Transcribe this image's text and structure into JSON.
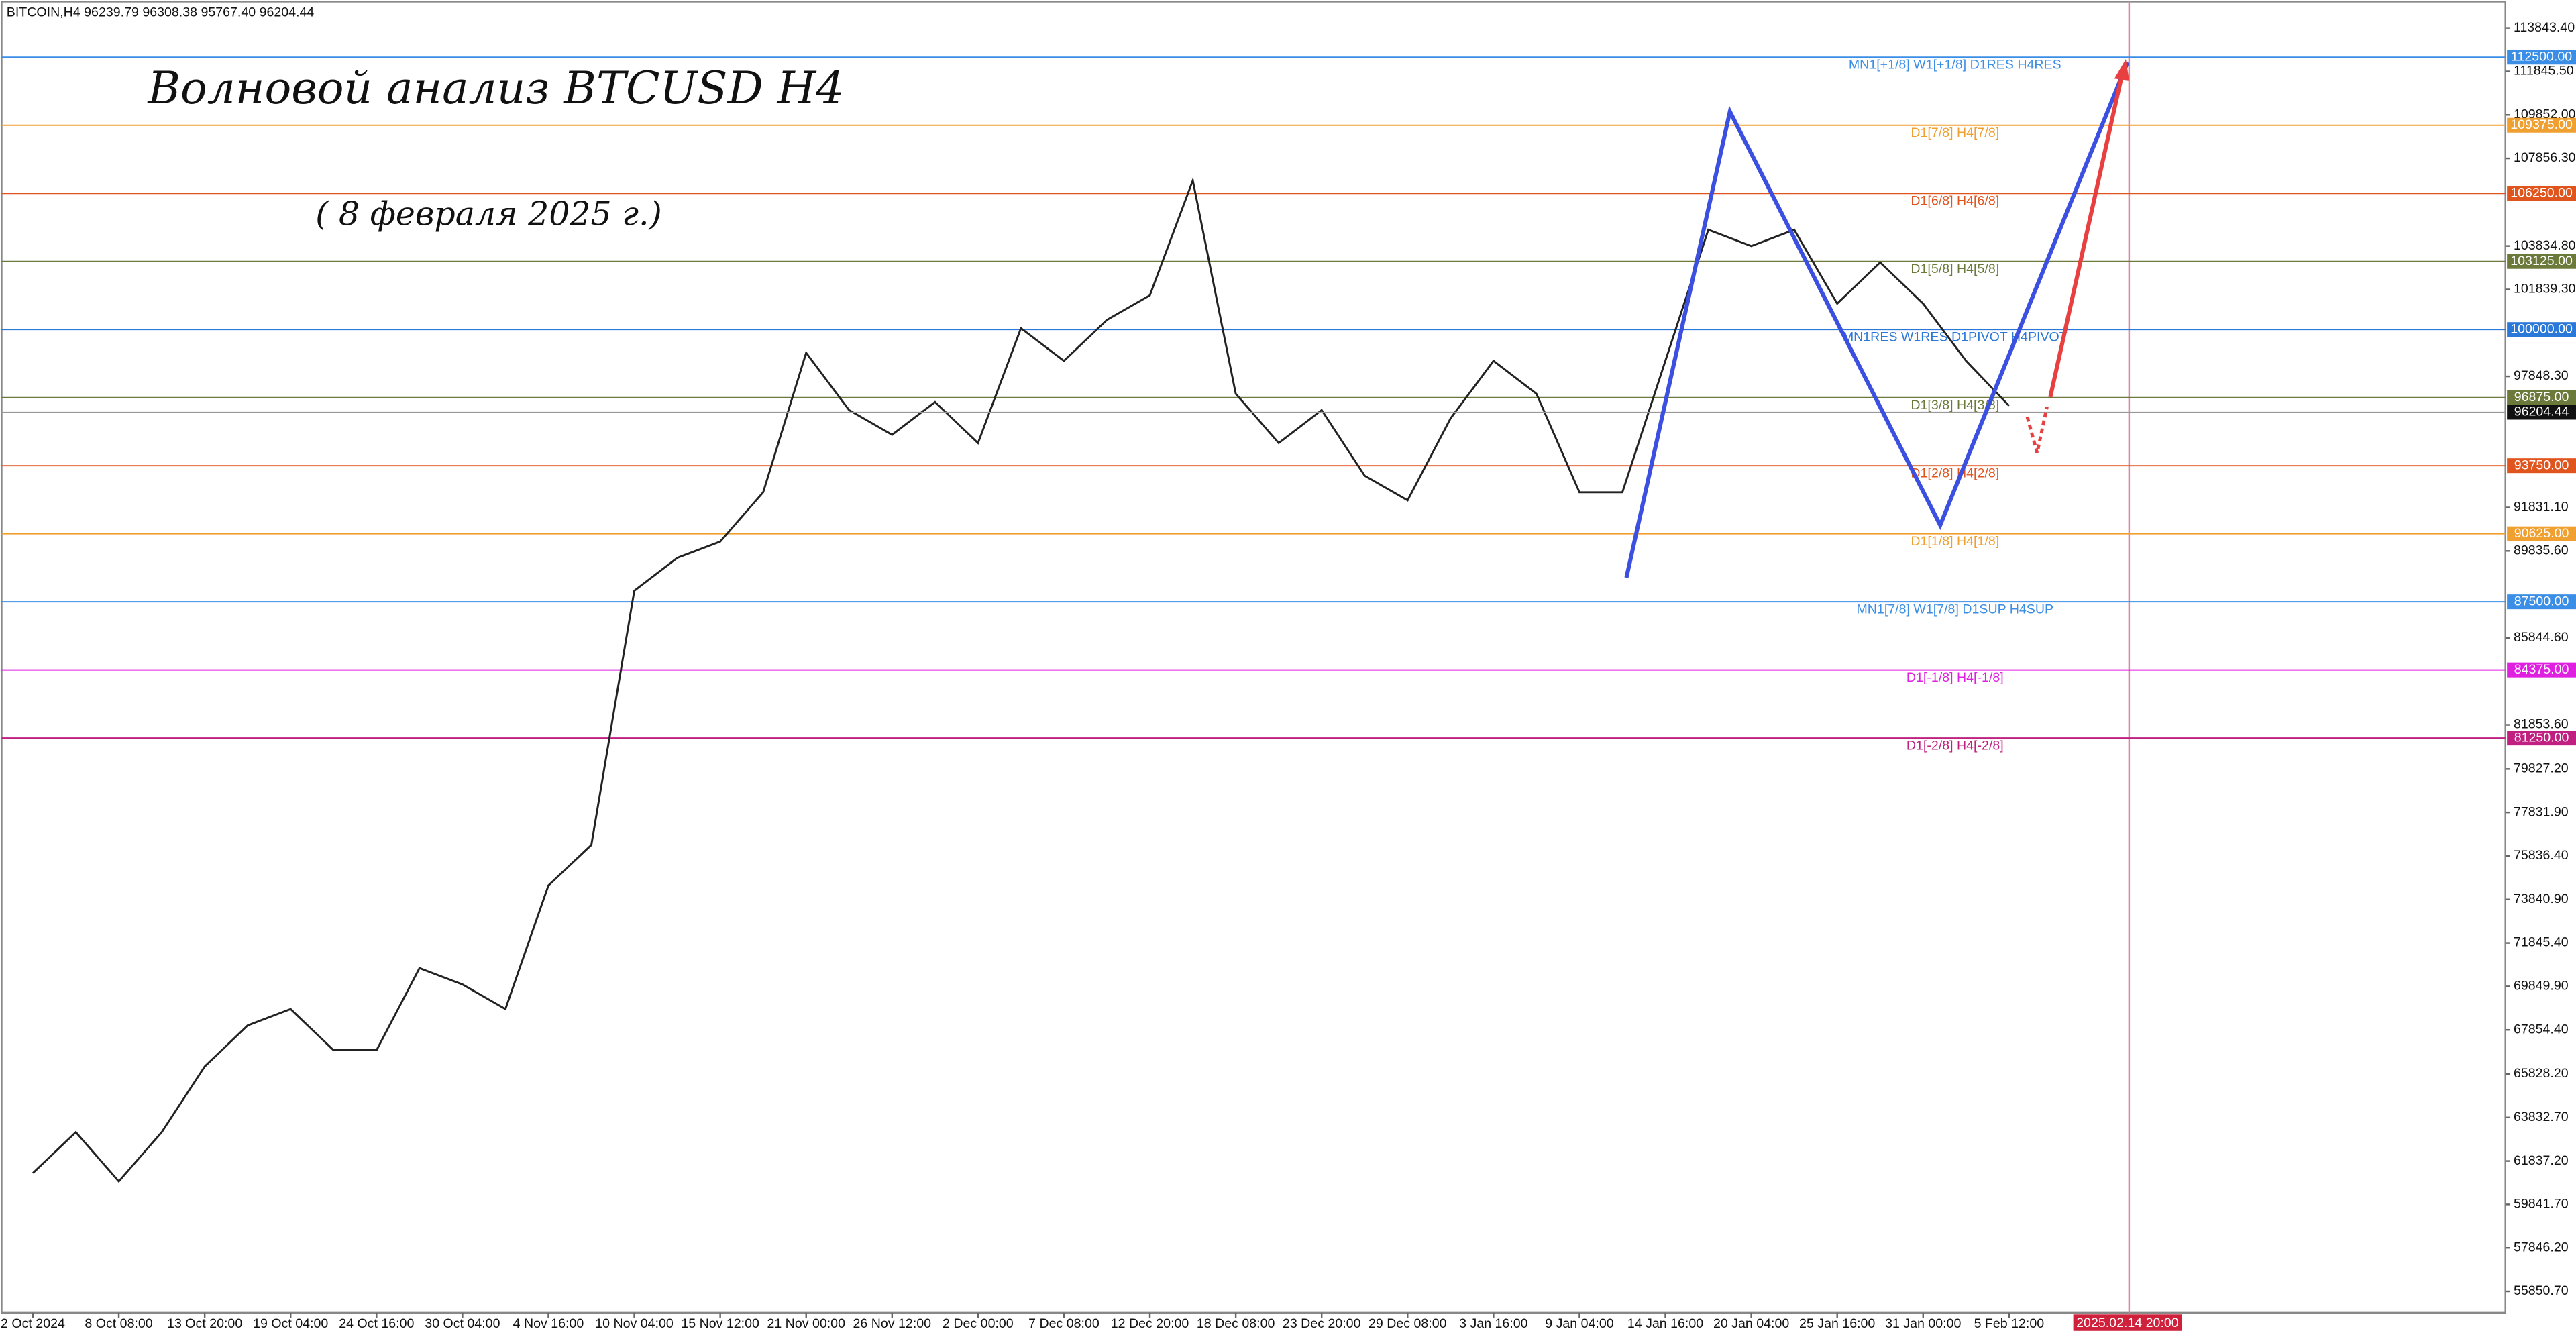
{
  "chart_data": {
    "type": "line",
    "header": "BITCOIN,H4  96239.79 96308.38 95767.40 96204.44",
    "title": "Волновой анализ BTCUSD H4",
    "subtitle": "( 8 февраля 2025 г.)",
    "categories": [
      "2 Oct 2024",
      null,
      "8 Oct 08:00",
      null,
      "13 Oct 20:00",
      null,
      "19 Oct 04:00",
      null,
      "24 Oct 16:00",
      null,
      "30 Oct 04:00",
      null,
      "4 Nov 16:00",
      null,
      "10 Nov 04:00",
      null,
      "15 Nov 12:00",
      null,
      "21 Nov 00:00",
      null,
      "26 Nov 12:00",
      null,
      "2 Dec 00:00",
      null,
      "7 Dec 08:00",
      null,
      "12 Dec 20:00",
      null,
      "18 Dec 08:00",
      null,
      "23 Dec 20:00",
      null,
      "29 Dec 08:00",
      null,
      "3 Jan 16:00",
      null,
      "9 Jan 04:00",
      null,
      "14 Jan 16:00",
      null,
      "20 Jan 04:00",
      null,
      "25 Jan 16:00",
      null,
      "31 Jan 00:00",
      null,
      "5 Feb 12:00"
    ],
    "series": [
      {
        "name": "BITCOIN,H4",
        "color": "#222222",
        "values": [
          61280,
          63160,
          60900,
          63160,
          66170,
          68060,
          68810,
          66920,
          66920,
          70690,
          69940,
          68810,
          74480,
          76340,
          88010,
          89520,
          90270,
          92530,
          98930,
          96300,
          95170,
          96670,
          94790,
          100060,
          98560,
          100440,
          101570,
          106840,
          97050,
          94790,
          96300,
          93290,
          92160,
          95920,
          98560,
          97050,
          92530,
          92530,
          98560,
          104580,
          103830,
          104580,
          101190,
          103080,
          101190,
          98560,
          96500
        ]
      }
    ],
    "ylim": [
      54870,
      115125
    ],
    "yticks": [
      {
        "value": 113843.4,
        "label": "113843.40"
      },
      {
        "value": 111845.5,
        "label": "111845.50"
      },
      {
        "value": 109852.0,
        "label": "109852.00"
      },
      {
        "value": 107856.3,
        "label": "107856.30"
      },
      {
        "value": 103834.8,
        "label": "103834.80"
      },
      {
        "value": 101839.3,
        "label": "101839.30"
      },
      {
        "value": 97848.3,
        "label": "97848.30"
      },
      {
        "value": 91831.1,
        "label": "91831.10"
      },
      {
        "value": 89835.6,
        "label": "89835.60"
      },
      {
        "value": 85844.6,
        "label": "85844.60"
      },
      {
        "value": 81853.6,
        "label": "81853.60"
      },
      {
        "value": 79827.2,
        "label": "79827.20"
      },
      {
        "value": 77831.9,
        "label": "77831.90"
      },
      {
        "value": 75836.4,
        "label": "75836.40"
      },
      {
        "value": 73840.9,
        "label": "73840.90"
      },
      {
        "value": 71845.4,
        "label": "71845.40"
      },
      {
        "value": 69849.9,
        "label": "69849.90"
      },
      {
        "value": 67854.4,
        "label": "67854.40"
      },
      {
        "value": 65828.2,
        "label": "65828.20"
      },
      {
        "value": 63832.7,
        "label": "63832.70"
      },
      {
        "value": 61837.2,
        "label": "61837.20"
      },
      {
        "value": 59841.7,
        "label": "59841.70"
      },
      {
        "value": 57846.2,
        "label": "57846.20"
      },
      {
        "value": 55850.7,
        "label": "55850.70"
      }
    ],
    "levels": [
      {
        "name": "MN1[+1/8] W1[+1/8] D1RES H4RES",
        "color": "#3a8ee6",
        "value": 112500,
        "value_label": "112500.00"
      },
      {
        "name": "D1[7/8] H4[7/8]",
        "color": "#f0a030",
        "value": 109375,
        "value_label": "109375.00"
      },
      {
        "name": "D1[6/8] H4[6/8]",
        "color": "#e0541e",
        "value": 106250,
        "value_label": "106250.00"
      },
      {
        "name": "D1[5/8] H4[5/8]",
        "color": "#6b7a3a",
        "value": 103125,
        "value_label": "103125.00"
      },
      {
        "name": "MN1RES W1RES D1PIVOT H4PIVOT",
        "color": "#2a78d8",
        "value": 100000,
        "value_label": "100000.00"
      },
      {
        "name": "D1[3/8] H4[3/8]",
        "color": "#6b7a3a",
        "value": 96875,
        "value_label": "96875.00"
      },
      {
        "name": "D1[2/8] H4[2/8]",
        "color": "#e0541e",
        "value": 93750,
        "value_label": "93750.00"
      },
      {
        "name": "D1[1/8] H4[1/8]",
        "color": "#f0a030",
        "value": 90625,
        "value_label": "90625.00"
      },
      {
        "name": "MN1[7/8] W1[7/8] D1SUP H4SUP",
        "color": "#3a8ee6",
        "value": 87500,
        "value_label": "87500.00"
      },
      {
        "name": "D1[-1/8] H4[-1/8]",
        "color": "#e020e0",
        "value": 84375,
        "value_label": "84375.00"
      },
      {
        "name": "D1[-2/8] H4[-2/8]",
        "color": "#c02080",
        "value": 81250,
        "value_label": "81250.00"
      }
    ],
    "current_price": 96204.44,
    "future_date": "2025.02.14 20:00"
  }
}
